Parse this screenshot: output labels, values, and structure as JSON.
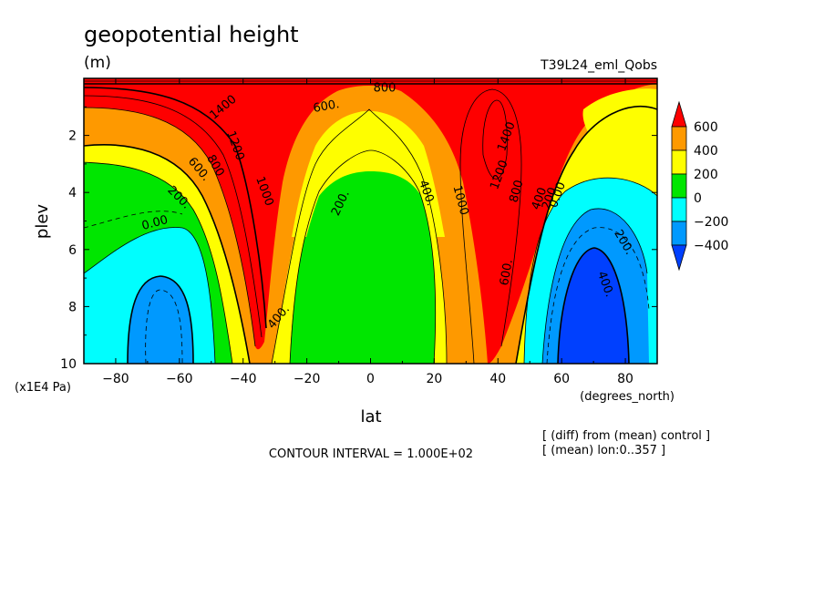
{
  "chart_data": {
    "type": "heatmap",
    "subtype": "filled-contour",
    "title": "geopotential height",
    "units": "(m)",
    "experiment": "T39L24_eml_Qobs",
    "xlabel": "lat",
    "xunits": "(degrees_north)",
    "ylabel": "plev",
    "yunits": "(x1E4 Pa)",
    "xlim": [
      -90,
      90
    ],
    "ylim": [
      10,
      0
    ],
    "y_inverted": true,
    "x_ticks": [
      -80,
      -60,
      -40,
      -20,
      0,
      20,
      40,
      60,
      80
    ],
    "x_tick_labels": [
      "−80",
      "−60",
      "−40",
      "−20",
      "0",
      "20",
      "40",
      "60",
      "80"
    ],
    "y_ticks": [
      2,
      4,
      6,
      8,
      10
    ],
    "y_tick_labels": [
      "2",
      "4",
      "6",
      "8",
      "10"
    ],
    "colorbar": {
      "labels": [
        "600",
        "400",
        "200",
        "0",
        "−200",
        "−400"
      ],
      "colors": [
        "#fe0000",
        "#fe9900",
        "#fefe00",
        "#00e600",
        "#00fefe",
        "#0099fe",
        "#0040fe"
      ]
    },
    "contour_interval_text": "CONTOUR INTERVAL = 1.000E+02",
    "notes": [
      "[ (diff) from (mean) control ]",
      "[ (mean) lon:0..357 ]"
    ],
    "contour_labels": [
      "1400",
      "800",
      "600.",
      "1200",
      "800",
      "600.",
      "200.",
      "0.00",
      "1000",
      "400.",
      "200.",
      "400.",
      "1000",
      "1400",
      "1200",
      "800",
      "600.",
      "400",
      "200.",
      "0.00",
      "200.",
      "400."
    ]
  }
}
